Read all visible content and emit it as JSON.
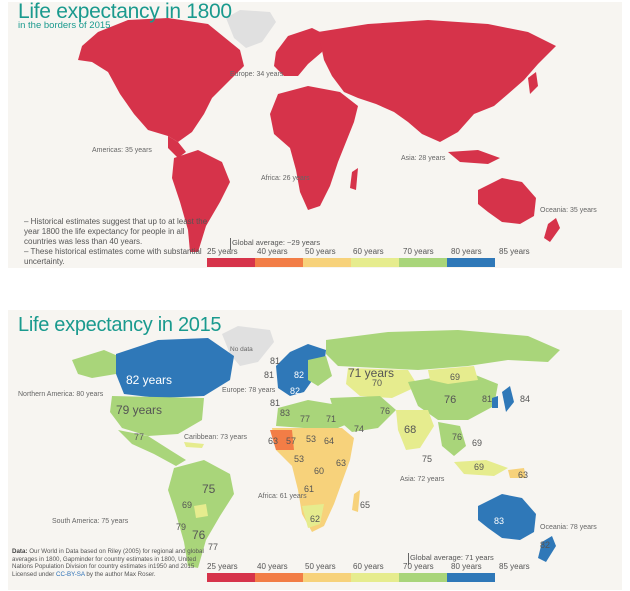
{
  "map1800": {
    "title": "Life expectancy in 1800",
    "subtitle": "in the borders of 2015",
    "region_labels": {
      "europe": "Europe: 34 years",
      "americas": "Americas: 35 years",
      "africa": "Africa: 26 years",
      "asia": "Asia: 28 years",
      "oceania": "Oceania: 35 years"
    },
    "notes": [
      "– Historical estimates suggest that up to at least the year 1800 the life expectancy for people in all countries was less than 40 years.",
      "– These historical estimates come with substantial uncertainty."
    ],
    "global_average": "Global average: ~29 years",
    "global_average_value": 29
  },
  "map2015": {
    "title": "Life expectancy in 2015",
    "no_data_label": "No data",
    "region_labels": {
      "northern_america": "Northern America: 80 years",
      "europe": "Europe: 78 years",
      "caribbean": "Caribbean: 73 years",
      "africa": "Africa: 61 years",
      "asia": "Asia: 72 years",
      "south_america": "South America: 75 years",
      "oceania": "Oceania: 78 years"
    },
    "big_values": {
      "canada": "82 years",
      "usa": "79 years",
      "russia": "71 years"
    },
    "country_values": {
      "iceland": "81",
      "uk": "81",
      "ireland": "81",
      "norway": "82",
      "france": "82",
      "spain": "83",
      "kazakhstan": "70",
      "mongolia": "69",
      "china": "76",
      "japan": "84",
      "korea": "81",
      "india": "68",
      "iran": "76",
      "arabia": "74",
      "egypt": "71",
      "algeria": "77",
      "w_africa": "63",
      "mali": "57",
      "sudan": "64",
      "chad": "53",
      "nigeria": "53",
      "drc": "60",
      "angola": "61",
      "s_africa": "62",
      "madagascar": "65",
      "kenya": "63",
      "brazil": "75",
      "peru": "69",
      "chile": "79",
      "argentina": "76",
      "uruguay": "77",
      "mexico": "77",
      "australia": "83",
      "nz": "82",
      "indonesia": "69",
      "vietnam": "76",
      "sri_lanka": "75",
      "ph": "69",
      "png": "63"
    },
    "source": {
      "lead": "Data: ",
      "text": "Our World in Data based on Riley (2005) for regional and global averages in 1800, Gapminder for country estimates in 1800, United Nations Population Division for country estimates in1950 and 2015",
      "license_prefix": "Licensed under ",
      "license": "CC-BY-SA",
      "license_suffix": " by the author Max Roser."
    },
    "global_average": "Global average: 71 years",
    "global_average_value": 71
  },
  "legend": {
    "ticks": [
      "25 years",
      "40 years",
      "50 years",
      "60 years",
      "70 years",
      "80 years",
      "85 years"
    ],
    "colors": [
      "#d6334a",
      "#f27d46",
      "#f7d27b",
      "#e6ec8e",
      "#a9d57a",
      "#2f78b8"
    ]
  },
  "colors": {
    "title": "#1a9a8e",
    "red_1800": "#d6334a",
    "no_data": "#e0e0e0",
    "blue": "#2f78b8",
    "green": "#a9d57a",
    "light_green": "#e6ec8e",
    "yellow": "#f7d27b",
    "orange": "#f27d46"
  }
}
